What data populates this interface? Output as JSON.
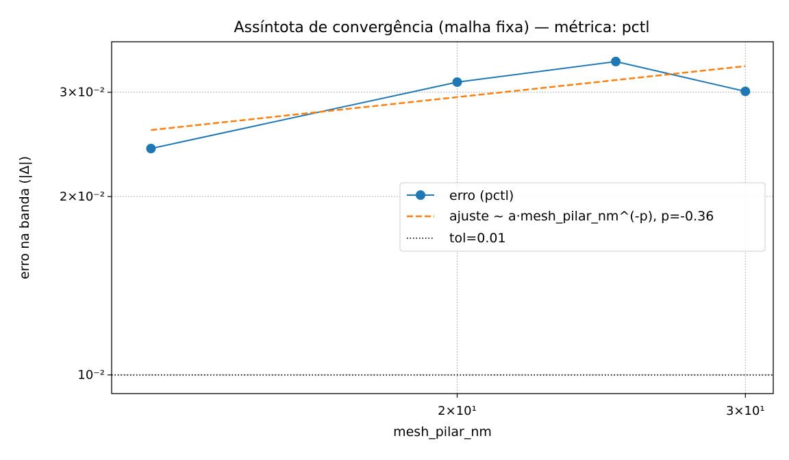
{
  "chart_data": {
    "type": "line",
    "title": "Assíntota de convergência (malha fixa) — métrica: pctl",
    "xlabel": "mesh_pilar_nm",
    "ylabel": "erro na banda (|Δ|)",
    "x_scale": "log",
    "y_scale": "log",
    "xlim": [
      12.3,
      31.2
    ],
    "ylim": [
      0.0093,
      0.0365
    ],
    "grid": true,
    "x_ticks": [
      {
        "value": 20,
        "label": "2×10¹"
      },
      {
        "value": 30,
        "label": "3×10¹"
      }
    ],
    "y_ticks": [
      {
        "value": 0.01,
        "label": "10⁻²"
      },
      {
        "value": 0.02,
        "label": "2×10⁻²"
      },
      {
        "value": 0.03,
        "label": "3×10⁻²"
      }
    ],
    "series": [
      {
        "name": "erro (pctl)",
        "style": "line-marker",
        "color": "#1f77b4",
        "x": [
          13,
          20,
          25,
          30
        ],
        "y": [
          0.0241,
          0.0312,
          0.0338,
          0.0301
        ]
      },
      {
        "name": "ajuste ~ a·mesh_pilar_nm^(-p), p=-0.36",
        "style": "dashed",
        "color": "#ff7f0e",
        "x": [
          13,
          30
        ],
        "y": [
          0.0259,
          0.0332
        ]
      },
      {
        "name": "tol=0.01",
        "style": "dotted-hline",
        "color": "#000000",
        "y_value": 0.01
      }
    ],
    "legend_position": "center-right"
  }
}
